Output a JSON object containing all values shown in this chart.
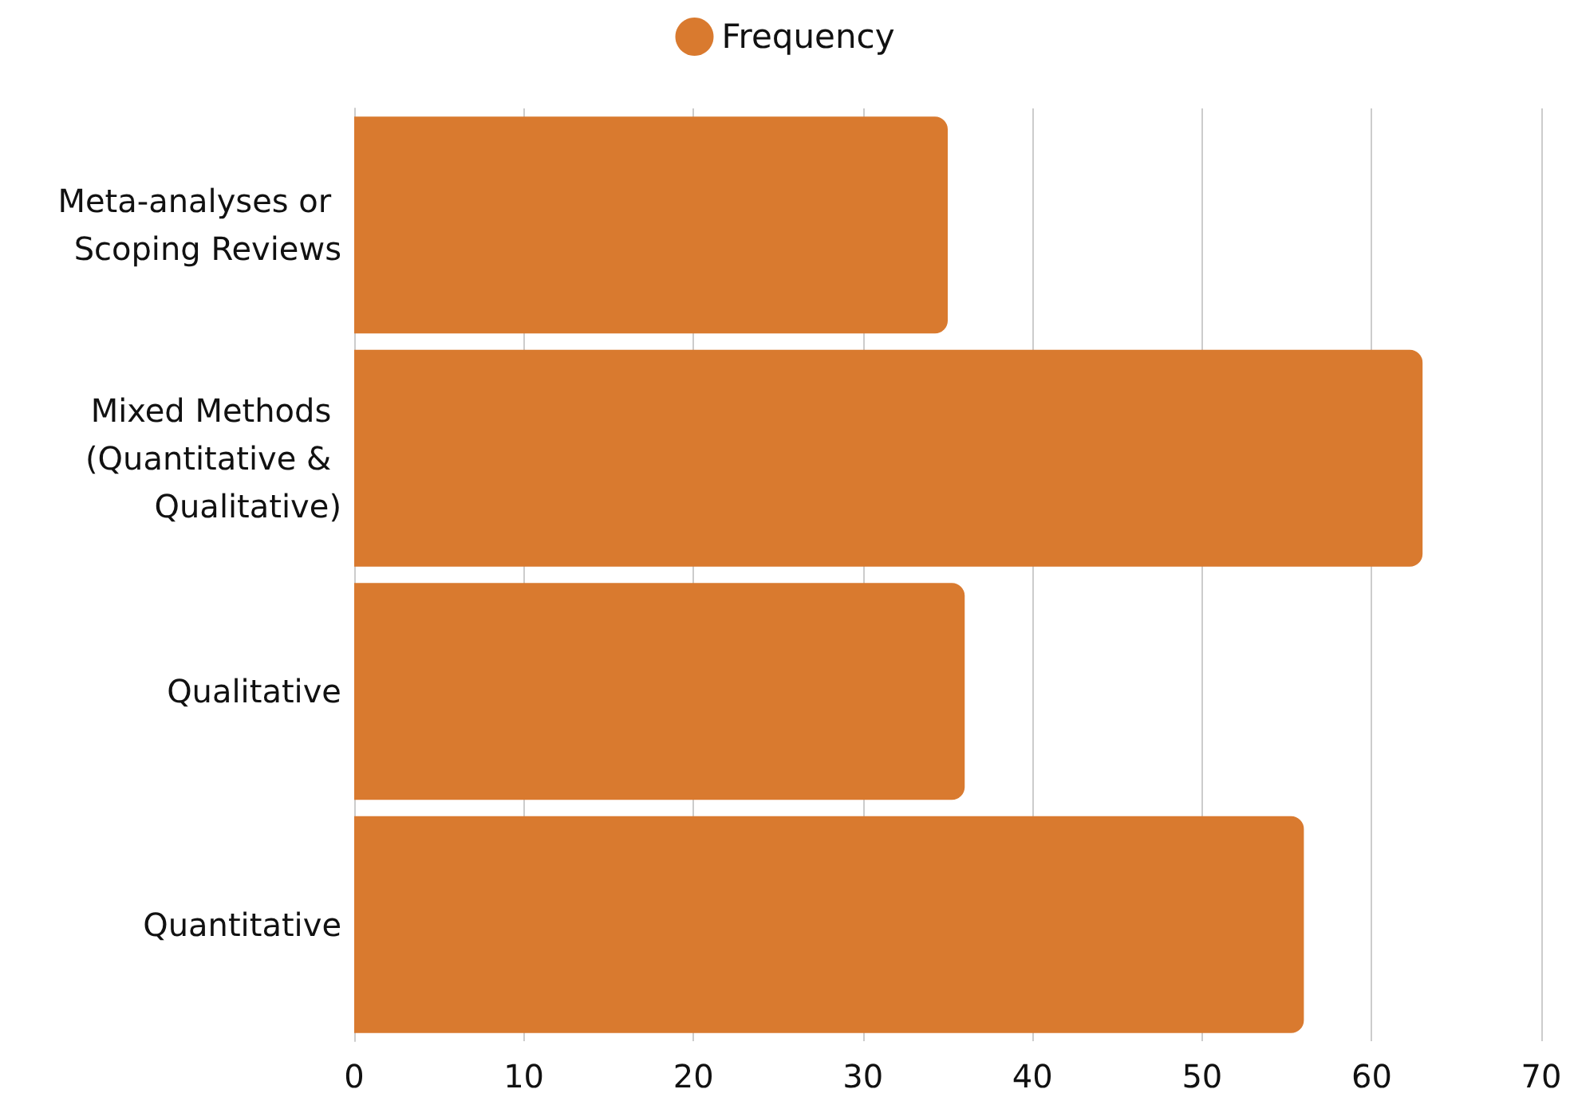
{
  "chart_data": {
    "type": "bar",
    "orientation": "horizontal",
    "categories": [
      "Meta-analyses or Scoping Reviews",
      "Mixed Methods (Quantitative & Qualitative)",
      "Qualitative",
      "Quantitative"
    ],
    "series": [
      {
        "name": "Frequency",
        "color": "#d97a2f",
        "values": [
          35,
          63,
          36,
          56
        ]
      }
    ],
    "xlim": [
      0,
      70
    ],
    "xticks": [
      0,
      10,
      20,
      30,
      40,
      50,
      60,
      70
    ],
    "grid": "x",
    "legend": "top"
  }
}
